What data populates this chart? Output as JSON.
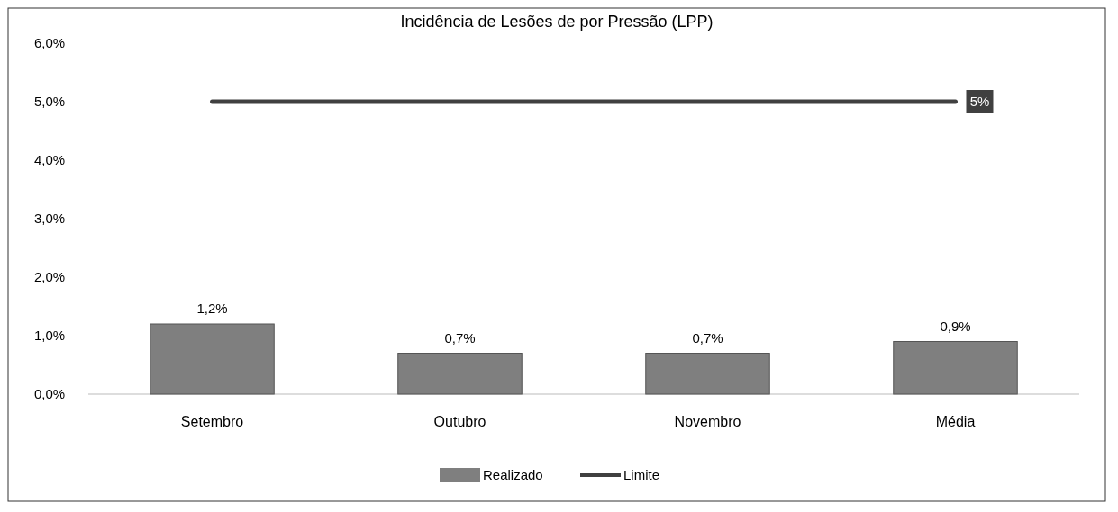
{
  "chart_data": {
    "type": "bar",
    "title": "Incidência de Lesões de por Pressão (LPP)",
    "categories": [
      "Setembro",
      "Outubro",
      "Novembro",
      "Média"
    ],
    "series": [
      {
        "name": "Realizado",
        "color": "#7f7f7f",
        "values": [
          1.2,
          0.7,
          0.7,
          0.9
        ],
        "value_labels": [
          "1,2%",
          "0,7%",
          "0,7%",
          "0,9%"
        ]
      },
      {
        "name": "Limite",
        "type": "line",
        "color": "#404040",
        "values": [
          5,
          5,
          5,
          5
        ],
        "value_labels": [
          null,
          null,
          null,
          "5%"
        ]
      }
    ],
    "ylim": [
      0,
      6
    ],
    "yticks": [
      {
        "value": 0,
        "label": "0,0%"
      },
      {
        "value": 1,
        "label": "1,0%"
      },
      {
        "value": 2,
        "label": "2,0%"
      },
      {
        "value": 3,
        "label": "3,0%"
      },
      {
        "value": 4,
        "label": "4,0%"
      },
      {
        "value": 5,
        "label": "5,0%"
      },
      {
        "value": 6,
        "label": "6,0%"
      }
    ],
    "grid": false,
    "legend": "bottom",
    "marker": "none",
    "line_style": "solid"
  }
}
